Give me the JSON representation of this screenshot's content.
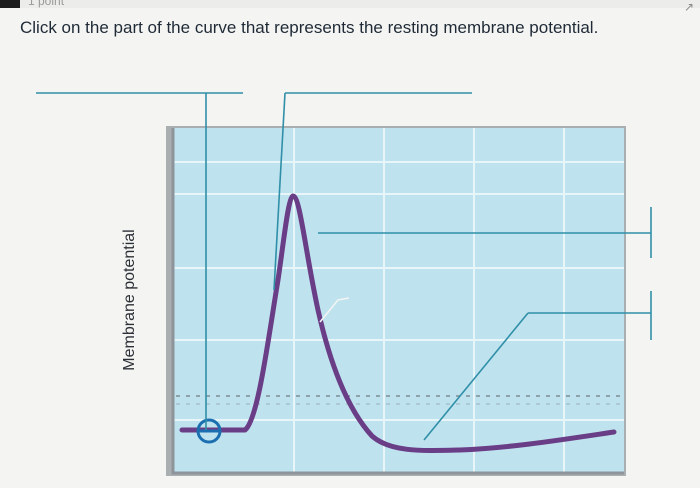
{
  "header": {
    "points_label": "1 point"
  },
  "question": {
    "prompt": "Click on the part of the curve that represents the resting membrane potential."
  },
  "figure": {
    "ylabel": "Membrane potential"
  },
  "colors": {
    "plot_bg": "#bfe3ee",
    "grid": "#e6f4f8",
    "curve": "#6a3d87",
    "leader_lines": "#2f8fa8",
    "marker": "#1b6fb0"
  },
  "chart_data": {
    "type": "line",
    "ylabel": "Membrane potential",
    "xlabel": "",
    "grid": true,
    "series": [
      {
        "values": [
          0.1,
          0.1,
          0.15,
          1.0,
          0.35,
          0.02,
          0.02,
          0.05
        ]
      }
    ]
  }
}
